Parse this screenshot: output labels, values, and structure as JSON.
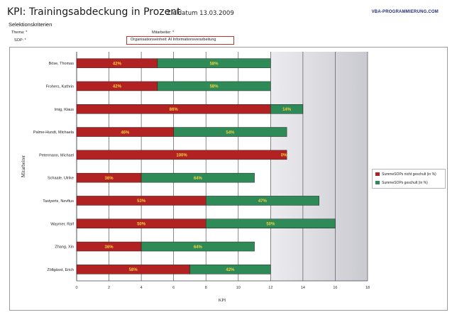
{
  "header": {
    "title": "KPI: Trainingsabdeckung in Prozent",
    "date_text": "Zieldatum 13.03.2009",
    "site": "VBA-PROGRAMMIERUNG.COM",
    "section": "Selektionskriterien"
  },
  "filters": {
    "thema": "Thema: *",
    "sop": "SOP: *",
    "mitarbeiter": "Mitarbeiter: *",
    "org": "Organisationseinheit: AI Informationsverarbeitung"
  },
  "colors": {
    "not_trained": "#b22222",
    "trained": "#2e8b57",
    "plot_band": "#e6e6ea"
  },
  "legend": {
    "not_trained": "SummeSOPs nicht geschult (in %)",
    "trained": "SummeSOPs geschult (in %)"
  },
  "chart_data": {
    "type": "bar",
    "orientation": "horizontal",
    "stacked": true,
    "xlabel": "KPI",
    "ylabel": "Mitarbeiter",
    "xlim": [
      0,
      18
    ],
    "xticks": [
      0,
      2,
      4,
      6,
      8,
      10,
      12,
      14,
      16,
      18
    ],
    "grid": true,
    "legend_position": "right",
    "categories": [
      "Böse, Thomas",
      "Frohers, Kathrin",
      "Imig, Klaus",
      "Palme-Hundt, Michaela",
      "Petermann, Michael",
      "Schaale, Ulrike",
      "Tastyerts, Nevftus",
      "Waymer, Ralf",
      "Zhang, Xin",
      "Zöllgässt, Erich"
    ],
    "series": [
      {
        "name": "SummeSOPs nicht geschult (in %)",
        "values": [
          5,
          5,
          12,
          6,
          13,
          4,
          8,
          8,
          4,
          7
        ],
        "labels": [
          "42%",
          "42%",
          "86%",
          "46%",
          "100%",
          "36%",
          "53%",
          "50%",
          "36%",
          "58%"
        ]
      },
      {
        "name": "SummeSOPs geschult (in %)",
        "values": [
          7,
          7,
          2,
          7,
          0,
          7,
          7,
          8,
          7,
          5
        ],
        "labels": [
          "58%",
          "58%",
          "14%",
          "54%",
          "0%",
          "64%",
          "47%",
          "50%",
          "64%",
          "42%"
        ]
      }
    ]
  }
}
